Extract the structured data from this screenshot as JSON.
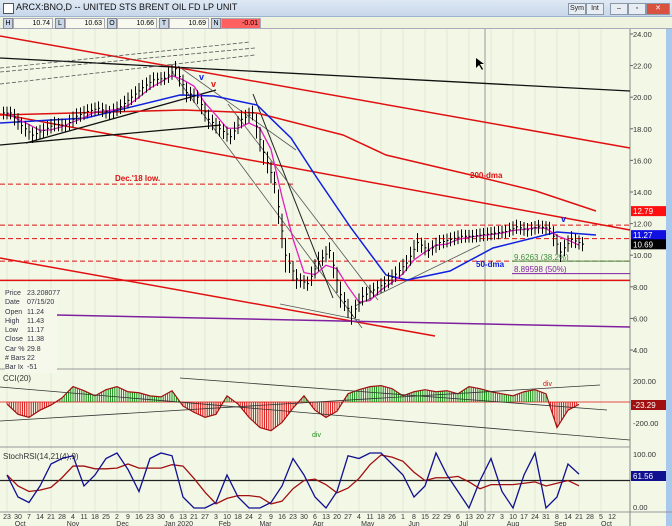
{
  "window": {
    "title": "ARCX:BNO,D -- UNITED STS BRENT OIL FD LP UNIT",
    "buttons": [
      "Sym",
      "Int",
      "–",
      "▫",
      "✕"
    ]
  },
  "quote": [
    {
      "k": "H",
      "v": "10.74"
    },
    {
      "k": "L",
      "v": "10.63"
    },
    {
      "k": "O",
      "v": "10.66"
    },
    {
      "k": "T",
      "v": "10.69"
    },
    {
      "k": "N",
      "v": "-0.01"
    }
  ],
  "data_box": [
    {
      "k": "Price",
      "v": "23.208077"
    },
    {
      "k": "Date",
      "v": "07/15/20"
    },
    {
      "k": "Open",
      "v": "11.24"
    },
    {
      "k": "High",
      "v": "11.43"
    },
    {
      "k": "Low",
      "v": "11.17"
    },
    {
      "k": "Close",
      "v": "11.38"
    },
    {
      "k": "Car %",
      "v": "29.8"
    },
    {
      "k": "# Bars",
      "v": "22"
    },
    {
      "k": "Bar Ix",
      "v": "-51"
    }
  ],
  "colors": {
    "background": "#f3f7e6",
    "price": "#000000",
    "short_ma": "#e020c0",
    "dma50": "#1020e0",
    "dma200": "#e01010",
    "trend": "#e01010",
    "support": "#8020a0",
    "cci_pos": "#109010",
    "cci_neg": "#e01010",
    "stoch_k": "#101090",
    "stoch_d": "#a01010"
  },
  "chart_data": [
    {
      "type": "line",
      "title": "",
      "series_label": "BNO daily",
      "yticks": [
        "24.00",
        "22.00",
        "20.00",
        "18.00",
        "16.00",
        "14.00",
        "12.00",
        "10.00",
        "8.00",
        "6.00",
        "4.00"
      ],
      "ylim": [
        4,
        24
      ],
      "x": [
        "2019-09-23",
        "2019-09-30",
        "2019-10-07",
        "2019-10-14",
        "2019-10-21",
        "2019-10-28",
        "2019-11-04",
        "2019-11-11",
        "2019-11-18",
        "2019-11-25",
        "2019-12-02",
        "2019-12-09",
        "2019-12-16",
        "2019-12-23",
        "2019-12-30",
        "2020-01-06",
        "2020-01-13",
        "2020-01-20",
        "2020-01-27",
        "2020-02-03",
        "2020-02-10",
        "2020-02-17",
        "2020-02-24",
        "2020-03-02",
        "2020-03-09",
        "2020-03-16",
        "2020-03-23",
        "2020-03-30",
        "2020-04-06",
        "2020-04-13",
        "2020-04-20",
        "2020-04-27",
        "2020-05-04",
        "2020-05-11",
        "2020-05-18",
        "2020-05-25",
        "2020-06-01",
        "2020-06-08",
        "2020-06-15",
        "2020-06-22",
        "2020-06-29",
        "2020-07-06",
        "2020-07-13",
        "2020-07-20",
        "2020-07-27",
        "2020-08-03",
        "2020-08-10",
        "2020-08-17",
        "2020-08-24",
        "2020-08-31",
        "2020-09-07",
        "2020-09-14",
        "2020-09-21"
      ],
      "close": [
        19.0,
        18.2,
        17.6,
        17.9,
        18.3,
        18.2,
        18.8,
        19.1,
        19.3,
        19.0,
        19.4,
        20.0,
        20.6,
        21.1,
        21.2,
        21.8,
        20.3,
        20.0,
        18.6,
        18.0,
        17.5,
        18.6,
        19.0,
        16.5,
        14.6,
        10.0,
        8.5,
        8.2,
        9.6,
        10.3,
        7.5,
        6.2,
        7.4,
        7.8,
        8.2,
        8.8,
        9.5,
        10.8,
        10.3,
        10.8,
        11.0,
        11.2,
        11.2,
        11.3,
        11.4,
        11.5,
        11.8,
        11.6,
        11.8,
        11.7,
        10.2,
        11.0,
        10.7
      ],
      "last_labels": [
        {
          "v": "12.79",
          "bg": "#ff1010",
          "fg": "#ffffff"
        },
        {
          "v": "11.27",
          "bg": "#1010e0",
          "fg": "#ffffff"
        },
        {
          "v": "10.69",
          "bg": "#000000",
          "fg": "#ffffff"
        }
      ],
      "annotations": {
        "dec18": "Dec.'18 low.",
        "dma200": "200-dma",
        "dma50": "50-dma",
        "fib382": "9.6263 (38.2%)",
        "fib50": "8.89598 (50%)",
        "v": "v",
        "div": "div"
      },
      "levels": {
        "dec18_low": 14.5,
        "resist1": 11.9,
        "resist2": 11.05,
        "fib382": 9.6263,
        "fib50": 8.89598,
        "support": 8.6
      }
    },
    {
      "type": "bar",
      "title": "CCI(20)",
      "yticks": [
        "200.00",
        "-200.00"
      ],
      "ylim": [
        -300,
        300
      ],
      "last": "-23.29",
      "values": [
        -20,
        -120,
        -150,
        -80,
        -30,
        40,
        150,
        110,
        60,
        120,
        150,
        100,
        90,
        60,
        50,
        110,
        -40,
        -100,
        -150,
        -120,
        60,
        -20,
        -150,
        -250,
        -280,
        -200,
        -60,
        60,
        -80,
        -150,
        -90,
        80,
        120,
        150,
        160,
        130,
        60,
        100,
        120,
        100,
        110,
        80,
        150,
        130,
        100,
        80,
        60,
        100,
        120,
        80,
        -250,
        -80,
        -23.29
      ]
    },
    {
      "type": "line",
      "title": "StochRSI(14,21(4),9)",
      "yticks": [
        "100.00",
        "0.00"
      ],
      "ylim": [
        0,
        100
      ],
      "last": "61.56",
      "values": [
        60,
        20,
        10,
        40,
        80,
        90,
        95,
        40,
        60,
        90,
        100,
        70,
        30,
        90,
        100,
        95,
        20,
        0,
        0,
        10,
        60,
        20,
        0,
        0,
        10,
        40,
        90,
        60,
        20,
        0,
        30,
        95,
        90,
        100,
        100,
        80,
        60,
        20,
        40,
        100,
        60,
        30,
        0,
        50,
        90,
        30,
        0,
        60,
        100,
        0,
        20,
        80,
        61.56
      ]
    }
  ],
  "x_axis": {
    "days": [
      "23",
      "30",
      "7",
      "14",
      "21",
      "28",
      "4",
      "11",
      "18",
      "25",
      "2",
      "9",
      "16",
      "23",
      "30",
      "6",
      "13",
      "21",
      "27",
      "3",
      "10",
      "18",
      "24",
      "2",
      "9",
      "16",
      "23",
      "30",
      "6",
      "13",
      "20",
      "27",
      "4",
      "11",
      "18",
      "26",
      "1",
      "8",
      "15",
      "22",
      "29",
      "6",
      "13",
      "20",
      "27",
      "3",
      "10",
      "17",
      "24",
      "31",
      "8",
      "14",
      "21",
      "28",
      "5",
      "12"
    ],
    "months": [
      "Oct",
      "Nov",
      "Dec",
      "Jan 2020",
      "Feb",
      "Mar",
      "Apr",
      "May",
      "Jun",
      "Jul",
      "Aug",
      "Sep",
      "Oct"
    ]
  }
}
